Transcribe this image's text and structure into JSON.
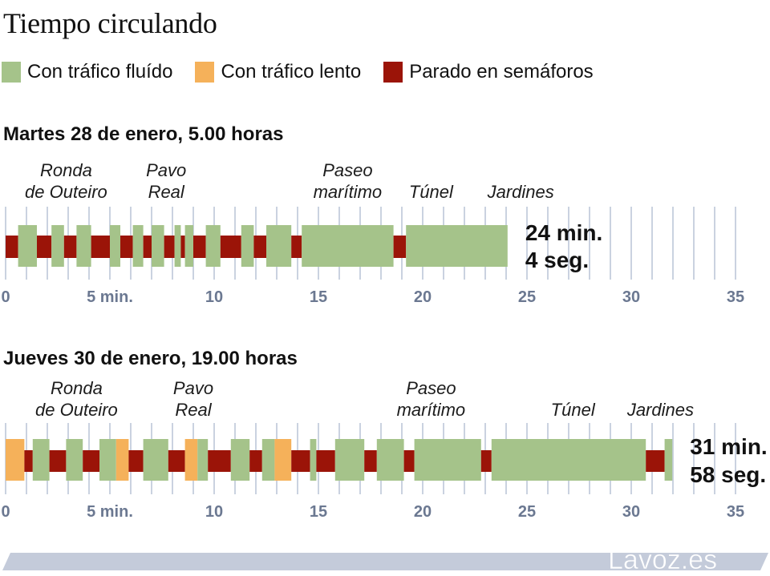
{
  "title": "Tiempo circulando",
  "legend": [
    {
      "label": "Con tráfico fluído",
      "color": "#a5c38a"
    },
    {
      "label": "Con tráfico lento",
      "color": "#f5b15a"
    },
    {
      "label": "Parado en semáforos",
      "color": "#9b1408"
    }
  ],
  "colors": {
    "gridline": "#b9c3d6",
    "axis_label": "#6b7891",
    "watermark": "#c4cbda",
    "watermark_text": "#ffffff"
  },
  "watermark": "Lavoz.es",
  "chart_data": [
    {
      "type": "bar",
      "title": "Martes 28 de enero, 5.00 horas",
      "xlim": [
        0,
        35
      ],
      "x_ticks": [
        0,
        5,
        10,
        15,
        20,
        25,
        30,
        35
      ],
      "x_tick_labels": [
        "0",
        "5 min.",
        "10",
        "15",
        "20",
        "25",
        "30",
        "35"
      ],
      "total_minutes": 24.07,
      "total_label": [
        "24 min.",
        "4 seg."
      ],
      "places": [
        {
          "label": [
            "Ronda",
            "de Outeiro"
          ],
          "at": 2.9
        },
        {
          "label": [
            "Pavo",
            "Real"
          ],
          "at": 7.7
        },
        {
          "label": [
            "Paseo",
            "marítimo"
          ],
          "at": 16.4
        },
        {
          "label": [
            "Túnel"
          ],
          "at": 20.4
        },
        {
          "label": [
            "Jardines"
          ],
          "at": 24.7
        }
      ],
      "segments": [
        {
          "start": 0.0,
          "end": 0.6,
          "state": "parado"
        },
        {
          "start": 0.6,
          "end": 1.5,
          "state": "fluido"
        },
        {
          "start": 1.5,
          "end": 2.2,
          "state": "parado"
        },
        {
          "start": 2.2,
          "end": 2.8,
          "state": "fluido"
        },
        {
          "start": 2.8,
          "end": 3.4,
          "state": "parado"
        },
        {
          "start": 3.4,
          "end": 4.1,
          "state": "fluido"
        },
        {
          "start": 4.1,
          "end": 5.0,
          "state": "parado"
        },
        {
          "start": 5.0,
          "end": 5.5,
          "state": "fluido"
        },
        {
          "start": 5.5,
          "end": 6.1,
          "state": "parado"
        },
        {
          "start": 6.1,
          "end": 6.6,
          "state": "fluido"
        },
        {
          "start": 6.6,
          "end": 7.0,
          "state": "parado"
        },
        {
          "start": 7.0,
          "end": 7.6,
          "state": "fluido"
        },
        {
          "start": 7.6,
          "end": 8.1,
          "state": "parado"
        },
        {
          "start": 8.1,
          "end": 8.4,
          "state": "fluido"
        },
        {
          "start": 8.4,
          "end": 8.6,
          "state": "parado"
        },
        {
          "start": 8.6,
          "end": 9.0,
          "state": "fluido"
        },
        {
          "start": 9.0,
          "end": 9.6,
          "state": "parado"
        },
        {
          "start": 9.6,
          "end": 10.3,
          "state": "fluido"
        },
        {
          "start": 10.3,
          "end": 11.3,
          "state": "parado"
        },
        {
          "start": 11.3,
          "end": 11.9,
          "state": "fluido"
        },
        {
          "start": 11.9,
          "end": 12.5,
          "state": "parado"
        },
        {
          "start": 12.5,
          "end": 13.7,
          "state": "fluido"
        },
        {
          "start": 13.7,
          "end": 14.2,
          "state": "parado"
        },
        {
          "start": 14.2,
          "end": 18.6,
          "state": "fluido"
        },
        {
          "start": 18.6,
          "end": 19.2,
          "state": "parado"
        },
        {
          "start": 19.2,
          "end": 24.07,
          "state": "fluido"
        }
      ]
    },
    {
      "type": "bar",
      "title": "Jueves 30 de enero, 19.00 horas",
      "xlim": [
        0,
        35
      ],
      "x_ticks": [
        0,
        5,
        10,
        15,
        20,
        25,
        30,
        35
      ],
      "x_tick_labels": [
        "0",
        "5 min.",
        "10",
        "15",
        "20",
        "25",
        "30",
        "35"
      ],
      "total_minutes": 31.97,
      "total_label": [
        "31 min.",
        "58 seg."
      ],
      "places": [
        {
          "label": [
            "Ronda",
            "de Outeiro"
          ],
          "at": 3.4
        },
        {
          "label": [
            "Pavo",
            "Real"
          ],
          "at": 9.0
        },
        {
          "label": [
            "Paseo",
            "marítimo"
          ],
          "at": 20.4
        },
        {
          "label": [
            "Túnel"
          ],
          "at": 27.2
        },
        {
          "label": [
            "Jardines"
          ],
          "at": 31.4
        }
      ],
      "segments": [
        {
          "start": 0.0,
          "end": 0.9,
          "state": "lento"
        },
        {
          "start": 0.9,
          "end": 1.3,
          "state": "parado"
        },
        {
          "start": 1.3,
          "end": 2.1,
          "state": "fluido"
        },
        {
          "start": 2.1,
          "end": 2.9,
          "state": "parado"
        },
        {
          "start": 2.9,
          "end": 3.7,
          "state": "fluido"
        },
        {
          "start": 3.7,
          "end": 4.5,
          "state": "parado"
        },
        {
          "start": 4.5,
          "end": 5.3,
          "state": "fluido"
        },
        {
          "start": 5.3,
          "end": 5.9,
          "state": "lento"
        },
        {
          "start": 5.9,
          "end": 6.6,
          "state": "parado"
        },
        {
          "start": 6.6,
          "end": 7.8,
          "state": "fluido"
        },
        {
          "start": 7.8,
          "end": 8.6,
          "state": "parado"
        },
        {
          "start": 8.6,
          "end": 9.2,
          "state": "lento"
        },
        {
          "start": 9.2,
          "end": 9.7,
          "state": "fluido"
        },
        {
          "start": 9.7,
          "end": 10.8,
          "state": "parado"
        },
        {
          "start": 10.8,
          "end": 11.7,
          "state": "fluido"
        },
        {
          "start": 11.7,
          "end": 12.3,
          "state": "parado"
        },
        {
          "start": 12.3,
          "end": 12.9,
          "state": "fluido"
        },
        {
          "start": 12.9,
          "end": 13.7,
          "state": "lento"
        },
        {
          "start": 13.7,
          "end": 14.6,
          "state": "parado"
        },
        {
          "start": 14.6,
          "end": 14.9,
          "state": "fluido"
        },
        {
          "start": 14.9,
          "end": 15.8,
          "state": "parado"
        },
        {
          "start": 15.8,
          "end": 17.2,
          "state": "fluido"
        },
        {
          "start": 17.2,
          "end": 17.8,
          "state": "parado"
        },
        {
          "start": 17.8,
          "end": 19.1,
          "state": "fluido"
        },
        {
          "start": 19.1,
          "end": 19.6,
          "state": "parado"
        },
        {
          "start": 19.6,
          "end": 22.8,
          "state": "fluido"
        },
        {
          "start": 22.8,
          "end": 23.3,
          "state": "parado"
        },
        {
          "start": 23.3,
          "end": 30.7,
          "state": "fluido"
        },
        {
          "start": 30.7,
          "end": 31.6,
          "state": "parado"
        },
        {
          "start": 31.6,
          "end": 31.97,
          "state": "fluido"
        }
      ]
    }
  ]
}
